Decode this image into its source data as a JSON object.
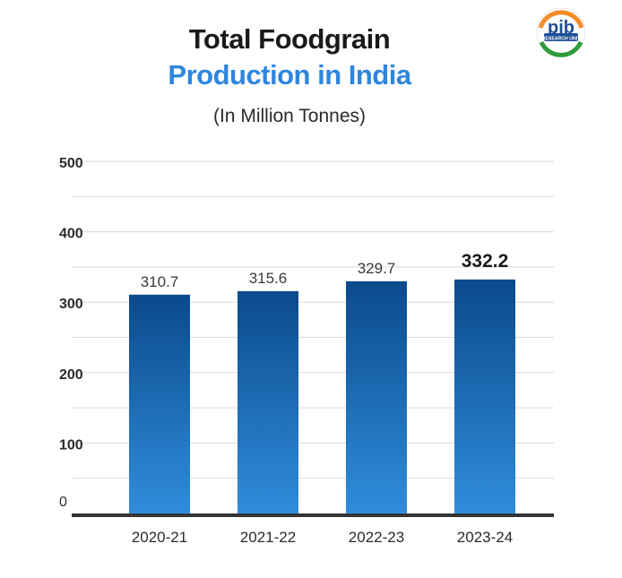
{
  "header": {
    "title_line1": "Total Foodgrain",
    "title_line2": "Production in India",
    "subtitle": "(In Million Tonnes)",
    "title_color": "#1a1a1a",
    "accent_color": "#2e86de"
  },
  "logo": {
    "icon": "pib-research-unit-logo",
    "text": "pib",
    "subtext": "RESEARCH UNIT"
  },
  "chart_data": {
    "type": "bar",
    "categories": [
      "2020-21",
      "2021-22",
      "2022-23",
      "2023-24"
    ],
    "values": [
      310.7,
      315.6,
      329.7,
      332.2
    ],
    "value_labels": [
      "310.7",
      "315.6",
      "329.7",
      "332.2"
    ],
    "highlight_index": 3,
    "ylim": [
      0,
      500
    ],
    "yticks": [
      0,
      100,
      200,
      300,
      400,
      500
    ],
    "ytick_labels": [
      "0",
      "100",
      "200",
      "300",
      "400",
      "500"
    ],
    "grid": true,
    "bar_color_top": "#0b4a8c",
    "bar_color_bottom": "#2f8ddb"
  }
}
